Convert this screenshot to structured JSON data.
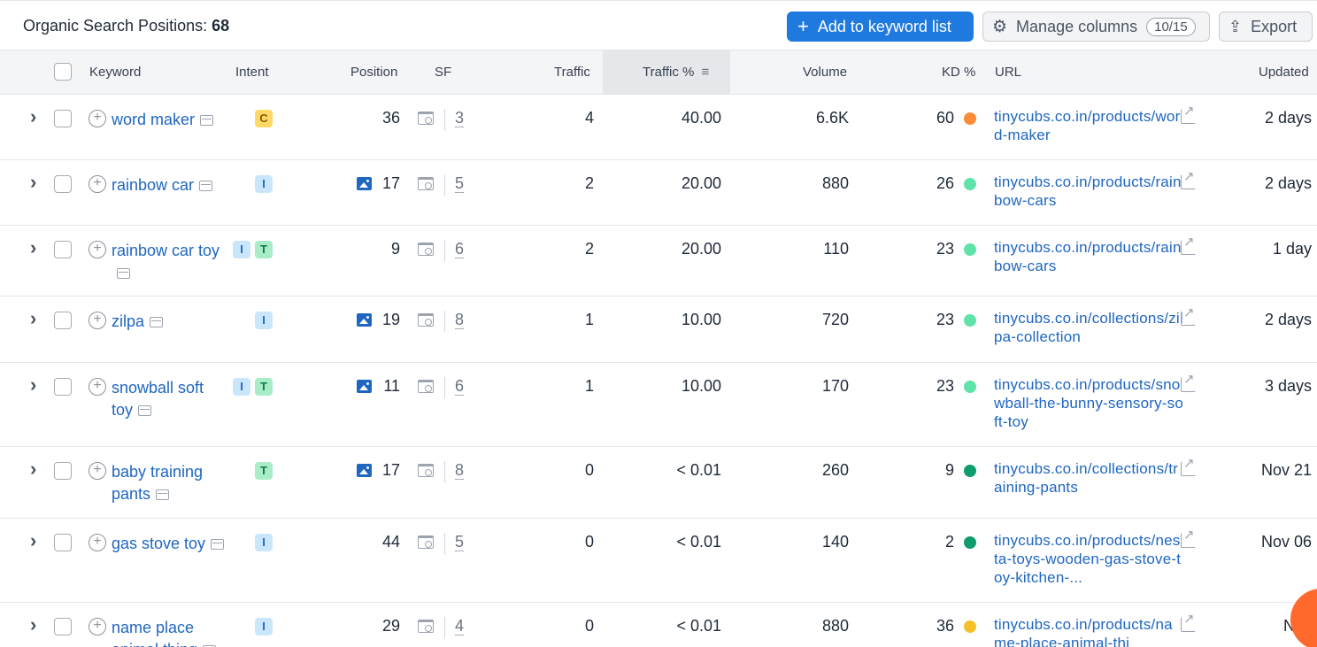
{
  "header": {
    "title_prefix": "Organic Search Positions:",
    "title_count": "68",
    "add_label": "Add to keyword list",
    "manage_label": "Manage columns",
    "manage_count": "10/15",
    "export_label": "Export"
  },
  "columns": {
    "keyword": "Keyword",
    "intent": "Intent",
    "position": "Position",
    "sf": "SF",
    "traffic": "Traffic",
    "traffic_pct": "Traffic %",
    "volume": "Volume",
    "kd": "KD %",
    "url": "URL",
    "updated": "Updated"
  },
  "rows": [
    {
      "keyword": "word maker",
      "intents": [
        "C"
      ],
      "image": false,
      "position": "36",
      "sf": "3",
      "traffic": "4",
      "traffic_pct": "40.00",
      "volume": "6.6K",
      "kd": "60",
      "kd_color": "#fb8c3a",
      "url": "tinycubs.co.in/products/word-maker",
      "updated": "2 days"
    },
    {
      "keyword": "rainbow car",
      "intents": [
        "I"
      ],
      "image": true,
      "position": "17",
      "sf": "5",
      "traffic": "2",
      "traffic_pct": "20.00",
      "volume": "880",
      "kd": "26",
      "kd_color": "#5fe3a8",
      "url": "tinycubs.co.in/products/rainbow-cars",
      "updated": "2 days"
    },
    {
      "keyword": "rainbow car toy",
      "intents": [
        "I",
        "T"
      ],
      "image": false,
      "position": "9",
      "sf": "6",
      "traffic": "2",
      "traffic_pct": "20.00",
      "volume": "110",
      "kd": "23",
      "kd_color": "#5fe3a8",
      "url": "tinycubs.co.in/products/rainbow-cars",
      "updated": "1 day"
    },
    {
      "keyword": "zilpa",
      "intents": [
        "I"
      ],
      "image": true,
      "position": "19",
      "sf": "8",
      "traffic": "1",
      "traffic_pct": "10.00",
      "volume": "720",
      "kd": "23",
      "kd_color": "#5fe3a8",
      "url": "tinycubs.co.in/collections/zilpa-collection",
      "updated": "2 days"
    },
    {
      "keyword": "snowball soft toy",
      "intents": [
        "I",
        "T"
      ],
      "image": true,
      "position": "11",
      "sf": "6",
      "traffic": "1",
      "traffic_pct": "10.00",
      "volume": "170",
      "kd": "23",
      "kd_color": "#5fe3a8",
      "url": "tinycubs.co.in/products/snowball-the-bunny-sensory-soft-toy",
      "updated": "3 days"
    },
    {
      "keyword": "baby training pants",
      "intents": [
        "T"
      ],
      "image": true,
      "position": "17",
      "sf": "8",
      "traffic": "0",
      "traffic_pct": "< 0.01",
      "volume": "260",
      "kd": "9",
      "kd_color": "#0f9d6b",
      "url": "tinycubs.co.in/collections/training-pants",
      "updated": "Nov 21"
    },
    {
      "keyword": "gas stove toy",
      "intents": [
        "I"
      ],
      "image": false,
      "position": "44",
      "sf": "5",
      "traffic": "0",
      "traffic_pct": "< 0.01",
      "volume": "140",
      "kd": "2",
      "kd_color": "#0f9d6b",
      "url": "tinycubs.co.in/products/nesta-toys-wooden-gas-stove-toy-kitchen-...",
      "updated": "Nov 06"
    },
    {
      "keyword": "name place animal thing",
      "intents": [
        "I"
      ],
      "image": false,
      "position": "29",
      "sf": "4",
      "traffic": "0",
      "traffic_pct": "< 0.01",
      "volume": "880",
      "kd": "36",
      "kd_color": "#f6c02c",
      "url": "tinycubs.co.in/products/name-place-animal-thi",
      "updated": "Nov"
    }
  ]
}
